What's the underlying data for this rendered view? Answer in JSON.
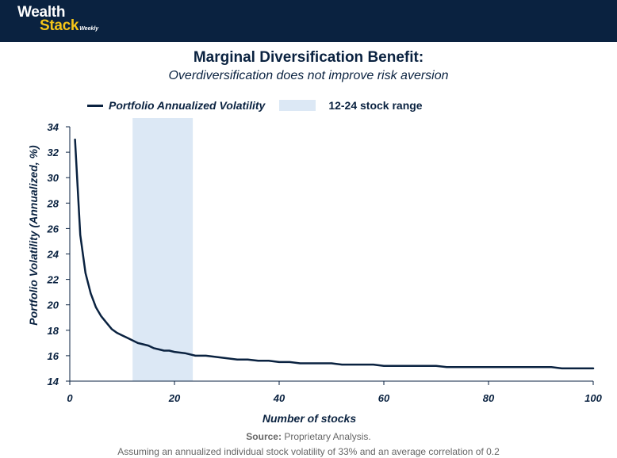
{
  "brand": {
    "name_line1": "Wealth",
    "name_line2": "Stack",
    "tagline": "Weekly"
  },
  "title": "Marginal Diversification Benefit:",
  "subtitle": "Overdiversification does not improve risk aversion",
  "legend": {
    "series_label": "Portfolio Annualized Volatility",
    "band_label": "12-24 stock range"
  },
  "colors": {
    "header": "#0a2240",
    "line": "#0a2240",
    "band": "#dce8f5",
    "accent": "#f5c518"
  },
  "chart_data": {
    "type": "line",
    "title": "Marginal Diversification Benefit:",
    "subtitle": "Overdiversification does not improve risk aversion",
    "xlabel": "Number of stocks",
    "ylabel": "Portfolio Volatility (Annualized, %)",
    "xlim": [
      0,
      100
    ],
    "ylim": [
      14,
      34
    ],
    "xticks": [
      0,
      20,
      40,
      60,
      80,
      100
    ],
    "yticks": [
      14,
      16,
      18,
      20,
      22,
      24,
      26,
      28,
      30,
      32,
      34
    ],
    "grid": false,
    "legend_position": "top-left",
    "shaded_range": {
      "label": "12-24 stock range",
      "x_start": 12,
      "x_end": 23.5
    },
    "series": [
      {
        "name": "Portfolio Annualized Volatility",
        "x": [
          1,
          2,
          3,
          4,
          5,
          6,
          7,
          8,
          9,
          10,
          11,
          12,
          13,
          14,
          15,
          16,
          17,
          18,
          19,
          20,
          22,
          24,
          26,
          28,
          30,
          32,
          34,
          36,
          38,
          40,
          42,
          44,
          46,
          48,
          50,
          52,
          54,
          56,
          58,
          60,
          62,
          64,
          66,
          68,
          70,
          72,
          74,
          76,
          78,
          80,
          82,
          84,
          86,
          88,
          90,
          92,
          94,
          96,
          98,
          100
        ],
        "values": [
          33.0,
          25.5,
          22.5,
          20.9,
          19.8,
          19.1,
          18.6,
          18.1,
          17.8,
          17.6,
          17.4,
          17.2,
          17.0,
          16.9,
          16.8,
          16.6,
          16.5,
          16.4,
          16.4,
          16.3,
          16.2,
          16.0,
          16.0,
          15.9,
          15.8,
          15.7,
          15.7,
          15.6,
          15.6,
          15.5,
          15.5,
          15.4,
          15.4,
          15.4,
          15.4,
          15.3,
          15.3,
          15.3,
          15.3,
          15.2,
          15.2,
          15.2,
          15.2,
          15.2,
          15.2,
          15.1,
          15.1,
          15.1,
          15.1,
          15.1,
          15.1,
          15.1,
          15.1,
          15.1,
          15.1,
          15.1,
          15.0,
          15.0,
          15.0,
          15.0
        ]
      }
    ]
  },
  "footer": {
    "source_label": "Source:",
    "source_text": "Proprietary Analysis.",
    "note": "Assuming an annualized individual stock volatility of 33% and an average correlation of 0.2"
  }
}
